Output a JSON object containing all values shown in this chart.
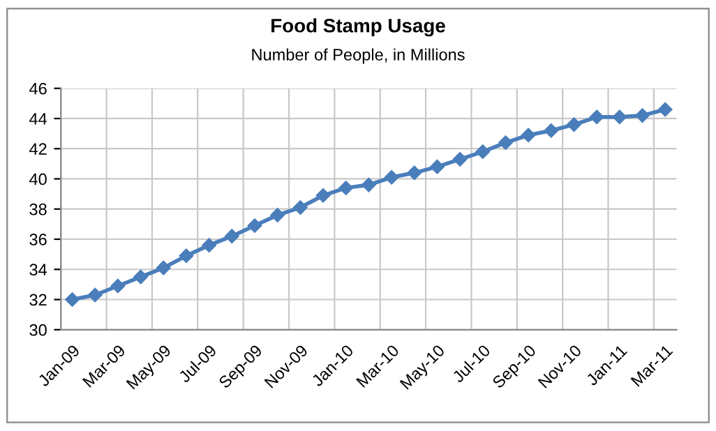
{
  "chart_data": {
    "type": "line",
    "title": "Food Stamp Usage",
    "subtitle": "Number of People, in Millions",
    "categories": [
      "Jan-09",
      null,
      "Mar-09",
      null,
      "May-09",
      null,
      "Jul-09",
      null,
      "Sep-09",
      null,
      "Nov-09",
      null,
      "Jan-10",
      null,
      "Mar-10",
      null,
      "May-10",
      null,
      "Jul-10",
      null,
      "Sep-10",
      null,
      "Nov-10",
      null,
      "Jan-11",
      null,
      "Mar-11"
    ],
    "series": [
      {
        "color": "#4a7ebb",
        "values": [
          32.0,
          32.3,
          32.9,
          33.5,
          34.1,
          34.9,
          35.6,
          36.2,
          36.9,
          37.6,
          38.1,
          38.9,
          39.4,
          39.6,
          40.1,
          40.4,
          40.8,
          41.3,
          41.8,
          42.4,
          42.9,
          43.2,
          43.6,
          44.1,
          44.1,
          44.2,
          44.6
        ]
      }
    ],
    "ylim": [
      30,
      46
    ],
    "yticks": [
      30,
      32,
      34,
      36,
      38,
      40,
      42,
      44,
      46
    ],
    "grid": true,
    "marker": "diamond",
    "line_style": "solid"
  }
}
